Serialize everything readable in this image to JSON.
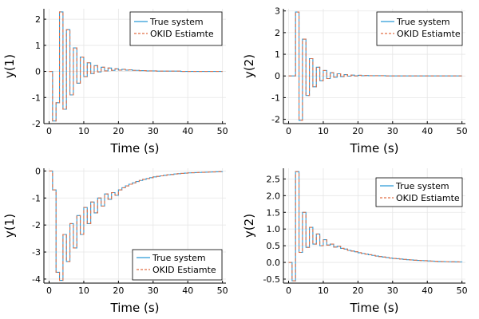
{
  "colors": {
    "true_system": "#2b9bd8",
    "okid_estimate": "#e26f46",
    "grid": "#e6e6e6",
    "axis": "#000000"
  },
  "chart_data": [
    {
      "type": "line",
      "title": "",
      "xlabel": "Time (s)",
      "ylabel": "y(1)",
      "xlim": [
        -1.5,
        51
      ],
      "ylim": [
        -2.0,
        2.4
      ],
      "xticks": [
        0,
        10,
        20,
        30,
        40,
        50
      ],
      "xtick_labels": [
        "0",
        "10",
        "20",
        "30",
        "40",
        "50"
      ],
      "yticks": [
        -2,
        -1,
        0,
        1,
        2
      ],
      "ytick_labels": [
        "-2",
        "-1",
        "0",
        "1",
        "2"
      ],
      "legend_position": "top-right",
      "grid": true,
      "series": [
        {
          "name": "True system",
          "style": "solid",
          "x": [
            0,
            1,
            2,
            3,
            4,
            5,
            6,
            7,
            8,
            9,
            10,
            11,
            12,
            13,
            14,
            15,
            16,
            17,
            18,
            19,
            20,
            21,
            22,
            23,
            24,
            25,
            26,
            27,
            28,
            29,
            30,
            31,
            32,
            33,
            34,
            35,
            36,
            37,
            38,
            39,
            40,
            41,
            42,
            43,
            44,
            45,
            46,
            47,
            48,
            49,
            50
          ],
          "y": [
            0,
            -1.9,
            -1.2,
            2.28,
            -1.45,
            1.6,
            -0.9,
            0.9,
            -0.45,
            0.55,
            -0.2,
            0.33,
            -0.08,
            0.22,
            -0.02,
            0.16,
            0.02,
            0.13,
            0.04,
            0.1,
            0.05,
            0.08,
            0.05,
            0.06,
            0.04,
            0.04,
            0.03,
            0.03,
            0.02,
            0.02,
            0.02,
            0.01,
            0.01,
            0.01,
            0.01,
            0.01,
            0.01,
            0.01,
            0,
            0,
            0,
            0,
            0,
            0,
            0,
            0,
            0,
            0,
            0,
            0,
            0
          ]
        },
        {
          "name": "OKID Estiamte",
          "style": "dashed",
          "x": [
            0,
            1,
            2,
            3,
            4,
            5,
            6,
            7,
            8,
            9,
            10,
            11,
            12,
            13,
            14,
            15,
            16,
            17,
            18,
            19,
            20,
            21,
            22,
            23,
            24,
            25,
            26,
            27,
            28,
            29,
            30,
            31,
            32,
            33,
            34,
            35,
            36,
            37,
            38,
            39,
            40,
            41,
            42,
            43,
            44,
            45,
            46,
            47,
            48,
            49,
            50
          ],
          "y": [
            0,
            -1.9,
            -1.2,
            2.28,
            -1.45,
            1.6,
            -0.9,
            0.9,
            -0.45,
            0.55,
            -0.2,
            0.33,
            -0.08,
            0.22,
            -0.02,
            0.16,
            0.02,
            0.13,
            0.04,
            0.1,
            0.05,
            0.08,
            0.05,
            0.06,
            0.04,
            0.04,
            0.03,
            0.03,
            0.02,
            0.02,
            0.02,
            0.01,
            0.01,
            0.01,
            0.01,
            0.01,
            0.01,
            0.01,
            0,
            0,
            0,
            0,
            0,
            0,
            0,
            0,
            0,
            0,
            0,
            0,
            0
          ]
        }
      ]
    },
    {
      "type": "line",
      "title": "",
      "xlabel": "Time (s)",
      "ylabel": "y(2)",
      "xlim": [
        -1.5,
        51
      ],
      "ylim": [
        -2.2,
        3.1
      ],
      "xticks": [
        0,
        10,
        20,
        30,
        40,
        50
      ],
      "xtick_labels": [
        "0",
        "10",
        "20",
        "30",
        "40",
        "50"
      ],
      "yticks": [
        -2,
        -1,
        0,
        1,
        2,
        3
      ],
      "ytick_labels": [
        "-2",
        "-1",
        "0",
        "1",
        "2",
        "3"
      ],
      "legend_position": "top-right",
      "grid": true,
      "series": [
        {
          "name": "True system",
          "style": "solid",
          "x": [
            0,
            1,
            2,
            3,
            4,
            5,
            6,
            7,
            8,
            9,
            10,
            11,
            12,
            13,
            14,
            15,
            16,
            17,
            18,
            19,
            20,
            21,
            22,
            23,
            24,
            25,
            26,
            27,
            28,
            29,
            30,
            31,
            32,
            33,
            34,
            35,
            36,
            37,
            38,
            39,
            40,
            41,
            42,
            43,
            44,
            45,
            46,
            47,
            48,
            49,
            50
          ],
          "y": [
            0,
            0,
            2.95,
            -2.05,
            1.7,
            -0.9,
            0.8,
            -0.5,
            0.4,
            -0.22,
            0.25,
            -0.12,
            0.15,
            -0.06,
            0.1,
            -0.03,
            0.06,
            -0.01,
            0.04,
            0,
            0.03,
            0.01,
            0.02,
            0.01,
            0.01,
            0.01,
            0.01,
            0.01,
            0,
            0,
            0,
            0,
            0,
            0,
            0,
            0,
            0,
            0,
            0,
            0,
            0,
            0,
            0,
            0,
            0,
            0,
            0,
            0,
            0,
            0,
            0
          ]
        },
        {
          "name": "OKID Estiamte",
          "style": "dashed",
          "x": [
            0,
            1,
            2,
            3,
            4,
            5,
            6,
            7,
            8,
            9,
            10,
            11,
            12,
            13,
            14,
            15,
            16,
            17,
            18,
            19,
            20,
            21,
            22,
            23,
            24,
            25,
            26,
            27,
            28,
            29,
            30,
            31,
            32,
            33,
            34,
            35,
            36,
            37,
            38,
            39,
            40,
            41,
            42,
            43,
            44,
            45,
            46,
            47,
            48,
            49,
            50
          ],
          "y": [
            0,
            0,
            2.95,
            -2.05,
            1.7,
            -0.9,
            0.8,
            -0.5,
            0.4,
            -0.22,
            0.25,
            -0.12,
            0.15,
            -0.06,
            0.1,
            -0.03,
            0.06,
            -0.01,
            0.04,
            0,
            0.03,
            0.01,
            0.02,
            0.01,
            0.01,
            0.01,
            0.01,
            0.01,
            0,
            0,
            0,
            0,
            0,
            0,
            0,
            0,
            0,
            0,
            0,
            0,
            0,
            0,
            0,
            0,
            0,
            0,
            0,
            0,
            0,
            0,
            0
          ]
        }
      ]
    },
    {
      "type": "line",
      "title": "",
      "xlabel": "Time (s)",
      "ylabel": "y(1)",
      "xlim": [
        -1.5,
        51
      ],
      "ylim": [
        -4.15,
        0.1
      ],
      "xticks": [
        0,
        10,
        20,
        30,
        40,
        50
      ],
      "xtick_labels": [
        "0",
        "10",
        "20",
        "30",
        "40",
        "50"
      ],
      "yticks": [
        -4,
        -3,
        -2,
        -1,
        0
      ],
      "ytick_labels": [
        "-4",
        "-3",
        "-2",
        "-1",
        "0"
      ],
      "legend_position": "bottom-right",
      "grid": true,
      "series": [
        {
          "name": "True system",
          "style": "solid",
          "x": [
            0,
            1,
            2,
            3,
            4,
            5,
            6,
            7,
            8,
            9,
            10,
            11,
            12,
            13,
            14,
            15,
            16,
            17,
            18,
            19,
            20,
            21,
            22,
            23,
            24,
            25,
            26,
            27,
            28,
            29,
            30,
            31,
            32,
            33,
            34,
            35,
            36,
            37,
            38,
            39,
            40,
            41,
            42,
            43,
            44,
            45,
            46,
            47,
            48,
            49,
            50
          ],
          "y": [
            0,
            -0.7,
            -3.75,
            -4.05,
            -2.35,
            -3.35,
            -1.95,
            -2.85,
            -1.65,
            -2.35,
            -1.35,
            -1.95,
            -1.15,
            -1.55,
            -1.0,
            -1.3,
            -0.85,
            -1.05,
            -0.8,
            -0.9,
            -0.7,
            -0.62,
            -0.55,
            -0.49,
            -0.44,
            -0.39,
            -0.35,
            -0.31,
            -0.28,
            -0.25,
            -0.22,
            -0.2,
            -0.18,
            -0.16,
            -0.14,
            -0.13,
            -0.11,
            -0.1,
            -0.09,
            -0.08,
            -0.07,
            -0.065,
            -0.06,
            -0.055,
            -0.05,
            -0.045,
            -0.04,
            -0.035,
            -0.03,
            -0.028,
            -0.025
          ]
        },
        {
          "name": "OKID Estiamte",
          "style": "dashed",
          "x": [
            0,
            1,
            2,
            3,
            4,
            5,
            6,
            7,
            8,
            9,
            10,
            11,
            12,
            13,
            14,
            15,
            16,
            17,
            18,
            19,
            20,
            21,
            22,
            23,
            24,
            25,
            26,
            27,
            28,
            29,
            30,
            31,
            32,
            33,
            34,
            35,
            36,
            37,
            38,
            39,
            40,
            41,
            42,
            43,
            44,
            45,
            46,
            47,
            48,
            49,
            50
          ],
          "y": [
            0,
            -0.7,
            -3.75,
            -4.05,
            -2.35,
            -3.35,
            -1.95,
            -2.85,
            -1.65,
            -2.35,
            -1.35,
            -1.95,
            -1.15,
            -1.55,
            -1.0,
            -1.3,
            -0.85,
            -1.05,
            -0.8,
            -0.9,
            -0.7,
            -0.62,
            -0.55,
            -0.49,
            -0.44,
            -0.39,
            -0.35,
            -0.31,
            -0.28,
            -0.25,
            -0.22,
            -0.2,
            -0.18,
            -0.16,
            -0.14,
            -0.13,
            -0.11,
            -0.1,
            -0.09,
            -0.08,
            -0.07,
            -0.065,
            -0.06,
            -0.055,
            -0.05,
            -0.045,
            -0.04,
            -0.035,
            -0.03,
            -0.028,
            -0.025
          ]
        }
      ]
    },
    {
      "type": "line",
      "title": "",
      "xlabel": "Time (s)",
      "ylabel": "y(2)",
      "xlim": [
        -1.5,
        51
      ],
      "ylim": [
        -0.62,
        2.82
      ],
      "xticks": [
        0,
        10,
        20,
        30,
        40,
        50
      ],
      "xtick_labels": [
        "0",
        "10",
        "20",
        "30",
        "40",
        "50"
      ],
      "yticks": [
        -0.5,
        0.0,
        0.5,
        1.0,
        1.5,
        2.0,
        2.5
      ],
      "ytick_labels": [
        "-0.5",
        "0.0",
        "0.5",
        "1.0",
        "1.5",
        "2.0",
        "2.5"
      ],
      "legend_position": "top-right",
      "grid": true,
      "series": [
        {
          "name": "True system",
          "style": "solid",
          "x": [
            0,
            1,
            2,
            3,
            4,
            5,
            6,
            7,
            8,
            9,
            10,
            11,
            12,
            13,
            14,
            15,
            16,
            17,
            18,
            19,
            20,
            21,
            22,
            23,
            24,
            25,
            26,
            27,
            28,
            29,
            30,
            31,
            32,
            33,
            34,
            35,
            36,
            37,
            38,
            39,
            40,
            41,
            42,
            43,
            44,
            45,
            46,
            47,
            48,
            49,
            50
          ],
          "y": [
            0,
            -0.55,
            2.72,
            0.3,
            1.5,
            0.45,
            1.05,
            0.55,
            0.85,
            0.5,
            0.68,
            0.52,
            0.55,
            0.46,
            0.48,
            0.42,
            0.4,
            0.36,
            0.34,
            0.32,
            0.29,
            0.27,
            0.25,
            0.23,
            0.21,
            0.19,
            0.175,
            0.16,
            0.145,
            0.13,
            0.12,
            0.11,
            0.1,
            0.09,
            0.08,
            0.075,
            0.065,
            0.06,
            0.055,
            0.05,
            0.045,
            0.04,
            0.035,
            0.03,
            0.028,
            0.025,
            0.022,
            0.02,
            0.018,
            0.016,
            0.015
          ]
        },
        {
          "name": "OKID Estiamte",
          "style": "dashed",
          "x": [
            0,
            1,
            2,
            3,
            4,
            5,
            6,
            7,
            8,
            9,
            10,
            11,
            12,
            13,
            14,
            15,
            16,
            17,
            18,
            19,
            20,
            21,
            22,
            23,
            24,
            25,
            26,
            27,
            28,
            29,
            30,
            31,
            32,
            33,
            34,
            35,
            36,
            37,
            38,
            39,
            40,
            41,
            42,
            43,
            44,
            45,
            46,
            47,
            48,
            49,
            50
          ],
          "y": [
            0,
            -0.55,
            2.72,
            0.3,
            1.5,
            0.45,
            1.05,
            0.55,
            0.85,
            0.5,
            0.68,
            0.52,
            0.55,
            0.46,
            0.48,
            0.42,
            0.4,
            0.36,
            0.34,
            0.32,
            0.29,
            0.27,
            0.25,
            0.23,
            0.21,
            0.19,
            0.175,
            0.16,
            0.145,
            0.13,
            0.12,
            0.11,
            0.1,
            0.09,
            0.08,
            0.075,
            0.065,
            0.06,
            0.055,
            0.05,
            0.045,
            0.04,
            0.035,
            0.03,
            0.028,
            0.025,
            0.022,
            0.02,
            0.018,
            0.016,
            0.015
          ]
        }
      ]
    }
  ]
}
